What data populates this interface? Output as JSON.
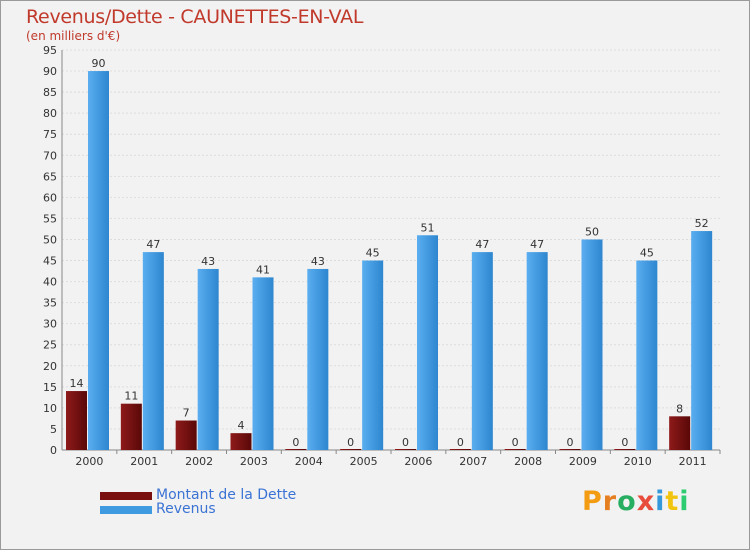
{
  "title": "Revenus/Dette - CAUNETTES-EN-VAL",
  "subtitle": "(en milliers d'€)",
  "colors": {
    "dette": "#7a0f0f",
    "revenus": "#3f9ae0",
    "title": "#c0392b",
    "legend_text": "#3b73d4"
  },
  "chart_data": {
    "type": "bar",
    "title": "Revenus/Dette - CAUNETTES-EN-VAL",
    "ylabel": "(en milliers d'€)",
    "xlabel": "",
    "ylim": [
      0,
      95
    ],
    "ytick_step": 5,
    "grid": true,
    "legend_position": "bottom-left",
    "categories": [
      "2000",
      "2001",
      "2002",
      "2003",
      "2004",
      "2005",
      "2006",
      "2007",
      "2008",
      "2009",
      "2010",
      "2011"
    ],
    "series": [
      {
        "name": "Montant de la Dette",
        "values": [
          14,
          11,
          7,
          4,
          0,
          0,
          0,
          0,
          0,
          0,
          0,
          8
        ]
      },
      {
        "name": "Revenus",
        "values": [
          90,
          47,
          43,
          41,
          43,
          45,
          51,
          47,
          47,
          50,
          45,
          52
        ]
      }
    ]
  },
  "legend": [
    {
      "label": "Montant de la Dette",
      "color_key": "dette"
    },
    {
      "label": "Revenus",
      "color_key": "revenus"
    }
  ],
  "logo": {
    "text": "Proxiti",
    "letter_colors": [
      "#f39c12",
      "#e67e22",
      "#27ae60",
      "#e74c3c",
      "#3498db",
      "#f1c40f",
      "#2ecc71"
    ]
  }
}
